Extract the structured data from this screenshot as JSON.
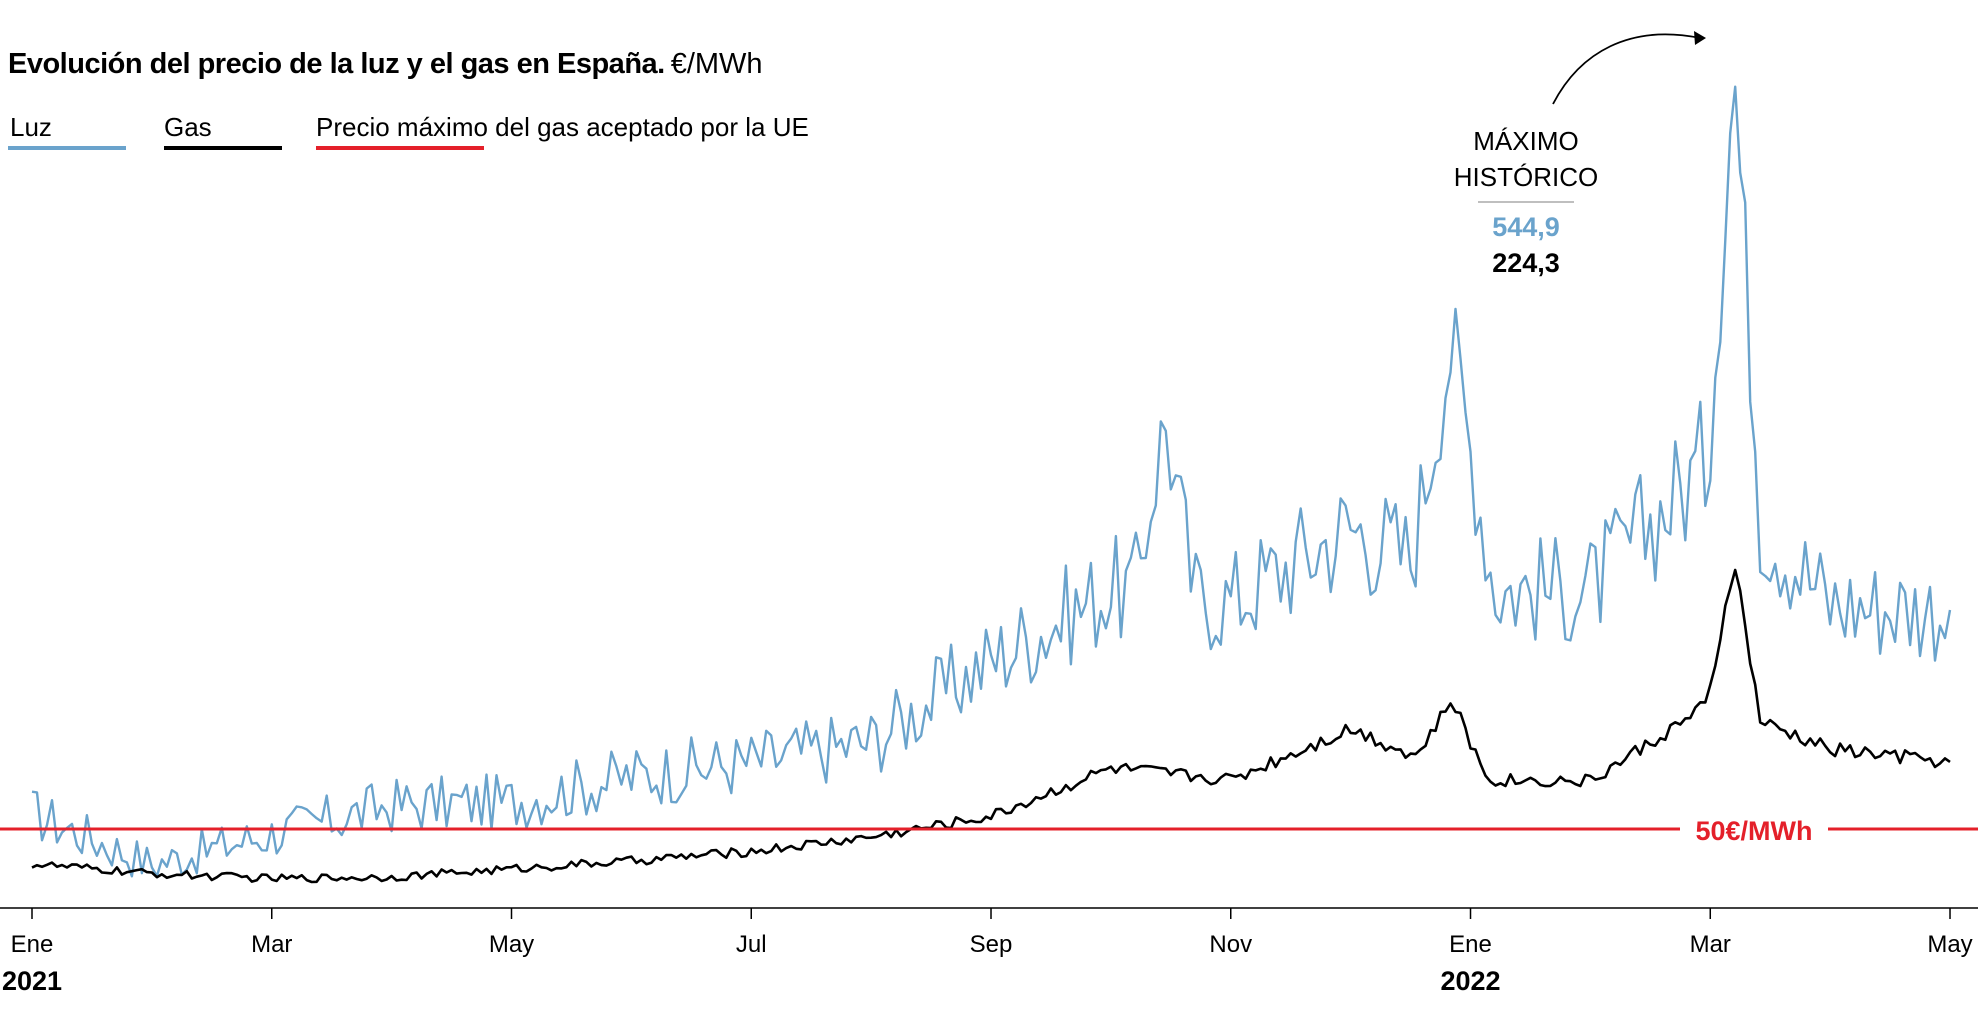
{
  "header": {
    "title": "Evolución del precio de la luz y el gas en España.",
    "unit": "€/MWh"
  },
  "legend": [
    {
      "label": "Luz",
      "color": "#6aa3cc"
    },
    {
      "label": "Gas",
      "color": "#000000"
    },
    {
      "label": "Precio máximo del gas aceptado por la UE",
      "color": "#e4202a"
    }
  ],
  "annotation": {
    "line1": "MÁXIMO",
    "line2": "HISTÓRICO",
    "luz_value": "544,9",
    "gas_value": "224,3"
  },
  "reference": {
    "label": "50€/MWh",
    "value": 50
  },
  "chart_data": {
    "type": "line",
    "title": "Evolución del precio de la luz y el gas en España.",
    "ylabel": "€/MWh",
    "ylim": [
      0,
      550
    ],
    "grid": false,
    "legend_position": "top-left",
    "x_ticks": [
      "Ene",
      "Mar",
      "May",
      "Jul",
      "Sep",
      "Nov",
      "Ene",
      "Mar",
      "May"
    ],
    "x_tick_years": [
      "2021",
      "",
      "",
      "",
      "",
      "",
      "2022",
      "",
      ""
    ],
    "x": [
      "2021-01",
      "2021-02",
      "2021-03",
      "2021-04",
      "2021-05",
      "2021-06",
      "2021-07",
      "2021-08",
      "2021-09",
      "2021-10",
      "2021-11",
      "2021-12",
      "2022-01",
      "2022-02",
      "2022-03",
      "2022-04",
      "2022-05"
    ],
    "series": [
      {
        "name": "Luz",
        "color": "#6aa3cc",
        "values": [
          60,
          28,
          47,
          65,
          67,
          83,
          92,
          105,
          156,
          200,
          193,
          239,
          201,
          200,
          283,
          191,
          187
        ]
      },
      {
        "name": "Gas",
        "color": "#000000",
        "values": [
          28,
          22,
          19,
          20,
          25,
          30,
          36,
          45,
          58,
          88,
          81,
          113,
          81,
          80,
          128,
          100,
          92
        ]
      },
      {
        "name": "Precio máximo del gas aceptado por la UE",
        "color": "#e4202a",
        "values": [
          50,
          50,
          50,
          50,
          50,
          50,
          50,
          50,
          50,
          50,
          50,
          50,
          50,
          50,
          50,
          50,
          50
        ]
      }
    ],
    "annotations": [
      {
        "text": "MÁXIMO HISTÓRICO",
        "date": "2022-03-08",
        "luz": 544.9,
        "gas": 224.3
      }
    ]
  }
}
